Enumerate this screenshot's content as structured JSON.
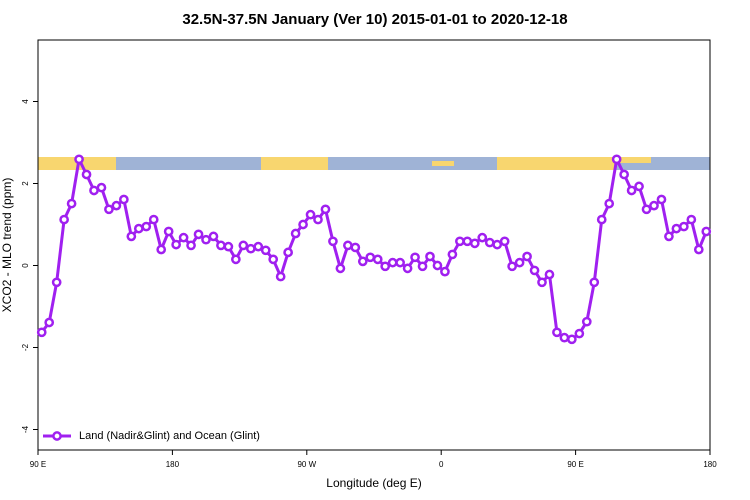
{
  "chart_data": {
    "type": "line",
    "title": "32.5N-37.5N January (Ver 10)   2015-01-01 to 2020-12-18",
    "x_label": "Longitude (deg E)",
    "y_label": "XCO2 - MLO trend (ppm)",
    "xlim": [
      90,
      540
    ],
    "ylim": [
      -4.5,
      5.5
    ],
    "xticks": [
      {
        "value": 90,
        "label": "90 E"
      },
      180,
      {
        "value": 270,
        "label": "90 W"
      },
      {
        "value": 360,
        "label": "0"
      },
      {
        "value": 450,
        "label": "90 E"
      },
      {
        "value": 540,
        "label": "180"
      }
    ],
    "yticks": [
      4,
      2,
      0,
      -2,
      -4
    ],
    "grid": false,
    "legend": "bottom-left",
    "x": [
      92.5,
      97.5,
      102.5,
      107.5,
      112.5,
      117.5,
      122.5,
      127.5,
      132.5,
      137.5,
      142.5,
      147.5,
      152.5,
      157.5,
      162.5,
      167.5,
      172.5,
      177.5,
      182.5,
      187.5,
      192.5,
      197.5,
      202.5,
      207.5,
      212.5,
      217.5,
      222.5,
      227.5,
      232.5,
      237.5,
      242.5,
      247.5,
      252.5,
      257.5,
      262.5,
      267.5,
      272.5,
      277.5,
      282.5,
      287.5,
      292.5,
      297.5,
      302.5,
      307.5,
      312.5,
      317.5,
      322.5,
      327.5,
      332.5,
      337.5,
      342.5,
      347.5,
      352.5,
      357.5,
      362.5,
      367.5,
      372.5,
      377.5,
      382.5,
      387.5,
      392.5,
      397.5,
      402.5,
      407.5,
      412.5,
      417.5,
      422.5,
      427.5,
      432.5,
      437.5,
      442.5,
      447.5,
      452.5,
      457.5,
      462.5,
      467.5,
      472.5,
      477.5,
      482.5,
      487.5,
      492.5,
      497.5,
      502.5,
      507.5,
      512.5,
      517.5,
      522.5,
      527.5,
      532.5,
      537.5
    ],
    "series": [
      {
        "name": "Land (Nadir&Glint) and Ocean (Glint)",
        "color": "#a020f0",
        "values": [
          -1.63,
          -1.39,
          -0.41,
          1.12,
          1.51,
          2.59,
          2.22,
          1.83,
          1.9,
          1.37,
          1.46,
          1.61,
          0.71,
          0.9,
          0.95,
          1.12,
          0.39,
          0.83,
          0.51,
          0.68,
          0.49,
          0.76,
          0.63,
          0.71,
          0.49,
          0.46,
          0.15,
          0.49,
          0.41,
          0.46,
          0.37,
          0.15,
          -0.27,
          0.32,
          0.78,
          1.0,
          1.24,
          1.12,
          1.37,
          0.59,
          -0.07,
          0.49,
          0.44,
          0.1,
          0.2,
          0.15,
          -0.02,
          0.07,
          0.07,
          -0.07,
          0.2,
          -0.02,
          0.22,
          0,
          -0.15,
          0.27,
          0.59,
          0.59,
          0.54,
          0.68,
          0.56,
          0.51,
          0.59,
          -0.02,
          0.07,
          0.22,
          -0.12,
          -0.41,
          -0.22,
          -1.63,
          -1.76,
          -1.8,
          -1.66,
          -1.37,
          -0.41,
          1.12,
          1.51,
          2.59,
          2.22,
          1.83,
          1.93,
          1.37,
          1.46,
          1.61,
          0.71,
          0.9,
          0.95,
          1.12,
          0.39,
          0.83
        ]
      }
    ]
  }
}
